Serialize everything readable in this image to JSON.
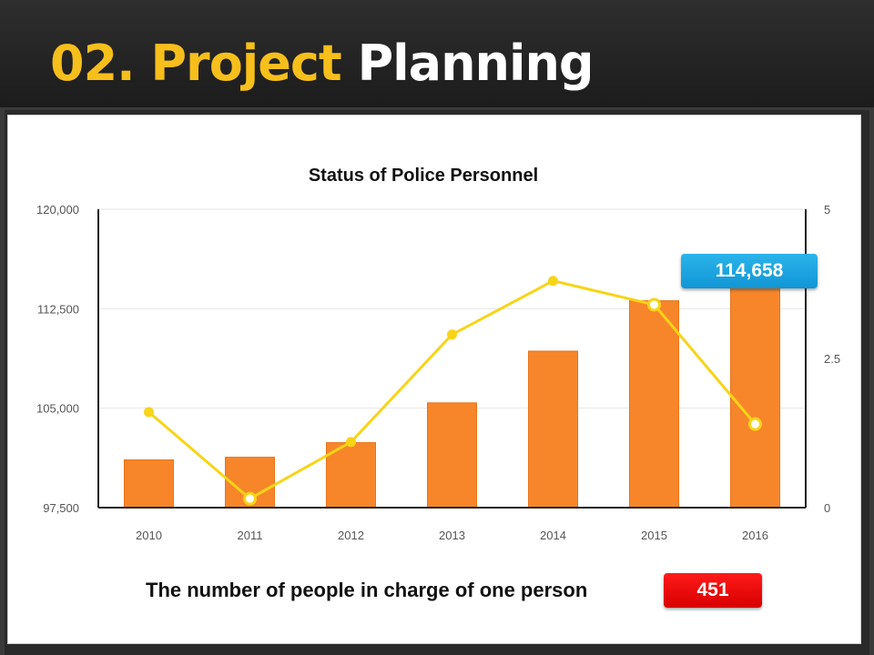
{
  "header": {
    "number": "02.",
    "accent": "Project",
    "title": "Planning"
  },
  "chart_data": {
    "type": "bar",
    "title": "Status of Police Personnel",
    "categories": [
      "2010",
      "2011",
      "2012",
      "2013",
      "2014",
      "2015",
      "2016"
    ],
    "series": [
      {
        "type": "bar",
        "axis": "left",
        "color": "#f7862b",
        "values": [
          101100,
          101300,
          102400,
          105400,
          109300,
          113100,
          114658
        ]
      },
      {
        "type": "line",
        "axis": "right",
        "color": "#f7d417",
        "values": [
          1.6,
          0.15,
          1.1,
          2.9,
          3.8,
          3.4,
          1.4
        ]
      }
    ],
    "y_left": {
      "min": 97500,
      "max": 120000,
      "ticks": [
        "97,500",
        "105,000",
        "112,500",
        "120,000"
      ],
      "tick_values": [
        97500,
        105000,
        112500,
        120000
      ]
    },
    "y_right": {
      "min": 0,
      "max": 5,
      "ticks": [
        "0",
        "2.5",
        "5"
      ],
      "tick_values": [
        0,
        2.5,
        5
      ]
    },
    "grid": true
  },
  "callout": {
    "label": "114,658",
    "color": "#1aa5e0"
  },
  "footer": {
    "label": "The number of people in charge of one person",
    "value": "451",
    "value_color": "#e60000"
  }
}
